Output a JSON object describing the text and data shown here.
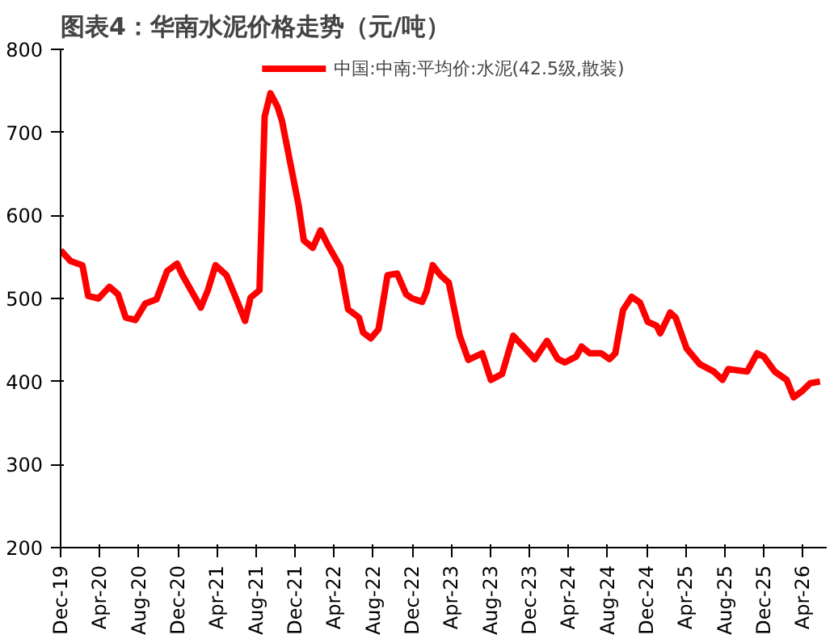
{
  "chart_data": {
    "type": "line",
    "title": "图表4：华南水泥价格走势（元/吨）",
    "x": [
      "2019-12-01",
      "2020-01-01",
      "2020-02-07",
      "2020-02-25",
      "2020-03-28",
      "2020-05-01",
      "2020-05-28",
      "2020-06-21",
      "2020-07-21",
      "2020-08-21",
      "2020-09-25",
      "2020-10-28",
      "2020-11-28",
      "2020-12-15",
      "2021-02-10",
      "2021-03-04",
      "2021-03-28",
      "2021-05-01",
      "2021-06-01",
      "2021-06-28",
      "2021-07-15",
      "2021-08-12",
      "2021-08-28",
      "2021-09-15",
      "2021-10-07",
      "2021-10-21",
      "2021-11-18",
      "2021-12-12",
      "2021-12-28",
      "2022-01-25",
      "2022-02-18",
      "2022-03-15",
      "2022-04-21",
      "2022-05-15",
      "2022-06-18",
      "2022-07-01",
      "2022-07-25",
      "2022-08-18",
      "2022-09-15",
      "2022-10-15",
      "2022-11-12",
      "2022-12-01",
      "2023-01-01",
      "2023-01-15",
      "2023-02-03",
      "2023-02-27",
      "2023-03-25",
      "2023-04-28",
      "2023-05-25",
      "2023-07-07",
      "2023-08-03",
      "2023-09-07",
      "2023-10-12",
      "2023-11-15",
      "2023-12-18",
      "2024-01-25",
      "2024-02-28",
      "2024-03-21",
      "2024-04-25",
      "2024-05-12",
      "2024-06-07",
      "2024-07-12",
      "2024-08-07",
      "2024-08-25",
      "2024-09-18",
      "2024-10-15",
      "2024-11-10",
      "2024-12-04",
      "2025-01-01",
      "2025-01-12",
      "2025-02-12",
      "2025-03-01",
      "2025-04-04",
      "2025-05-15",
      "2025-06-28",
      "2025-07-25",
      "2025-08-12",
      "2025-10-10",
      "2025-11-10",
      "2025-12-01",
      "2026-01-04",
      "2026-02-10",
      "2026-03-04",
      "2026-04-01",
      "2026-04-25",
      "2026-05-25"
    ],
    "series": [
      {
        "name": "中国:中南:平均价:水泥(42.5级,散装)",
        "color": "#ff0000",
        "values": [
          558,
          545,
          540,
          503,
          500,
          514,
          505,
          477,
          474,
          494,
          499,
          533,
          542,
          528,
          489,
          510,
          540,
          528,
          499,
          473,
          501,
          510,
          719,
          747,
          731,
          714,
          659,
          612,
          570,
          561,
          582,
          563,
          538,
          487,
          477,
          459,
          452,
          463,
          528,
          530,
          505,
          500,
          496,
          509,
          540,
          528,
          519,
          455,
          426,
          434,
          402,
          409,
          455,
          441,
          427,
          449,
          427,
          423,
          430,
          442,
          434,
          434,
          427,
          434,
          486,
          502,
          495,
          472,
          467,
          458,
          483,
          477,
          440,
          421,
          412,
          402,
          415,
          412,
          434,
          430,
          412,
          402,
          381,
          389,
          398,
          400
        ]
      }
    ],
    "xlim": [
      "2019-12-01",
      "2026-06-15"
    ],
    "xticks": [
      {
        "value": "2019-12-01",
        "label": "Dec-19"
      },
      {
        "value": "2020-04-01",
        "label": "Apr-20"
      },
      {
        "value": "2020-08-01",
        "label": "Aug-20"
      },
      {
        "value": "2020-12-01",
        "label": "Dec-20"
      },
      {
        "value": "2021-04-01",
        "label": "Apr-21"
      },
      {
        "value": "2021-08-01",
        "label": "Aug-21"
      },
      {
        "value": "2021-12-01",
        "label": "Dec-21"
      },
      {
        "value": "2022-04-01",
        "label": "Apr-22"
      },
      {
        "value": "2022-08-01",
        "label": "Aug-22"
      },
      {
        "value": "2022-12-01",
        "label": "Dec-22"
      },
      {
        "value": "2023-04-01",
        "label": "Apr-23"
      },
      {
        "value": "2023-08-01",
        "label": "Aug-23"
      },
      {
        "value": "2023-12-01",
        "label": "Dec-23"
      },
      {
        "value": "2024-04-01",
        "label": "Apr-24"
      },
      {
        "value": "2024-08-01",
        "label": "Aug-24"
      },
      {
        "value": "2024-12-01",
        "label": "Dec-24"
      },
      {
        "value": "2025-04-01",
        "label": "Apr-25"
      },
      {
        "value": "2025-08-01",
        "label": "Aug-25"
      },
      {
        "value": "2025-12-01",
        "label": "Dec-25"
      },
      {
        "value": "2026-04-01",
        "label": "Apr-26"
      }
    ],
    "ylim": [
      200,
      800
    ],
    "yticks": [
      200,
      300,
      400,
      500,
      600,
      700,
      800
    ],
    "grid": false,
    "legend": "top",
    "marker": "none",
    "line_style": "solid"
  }
}
